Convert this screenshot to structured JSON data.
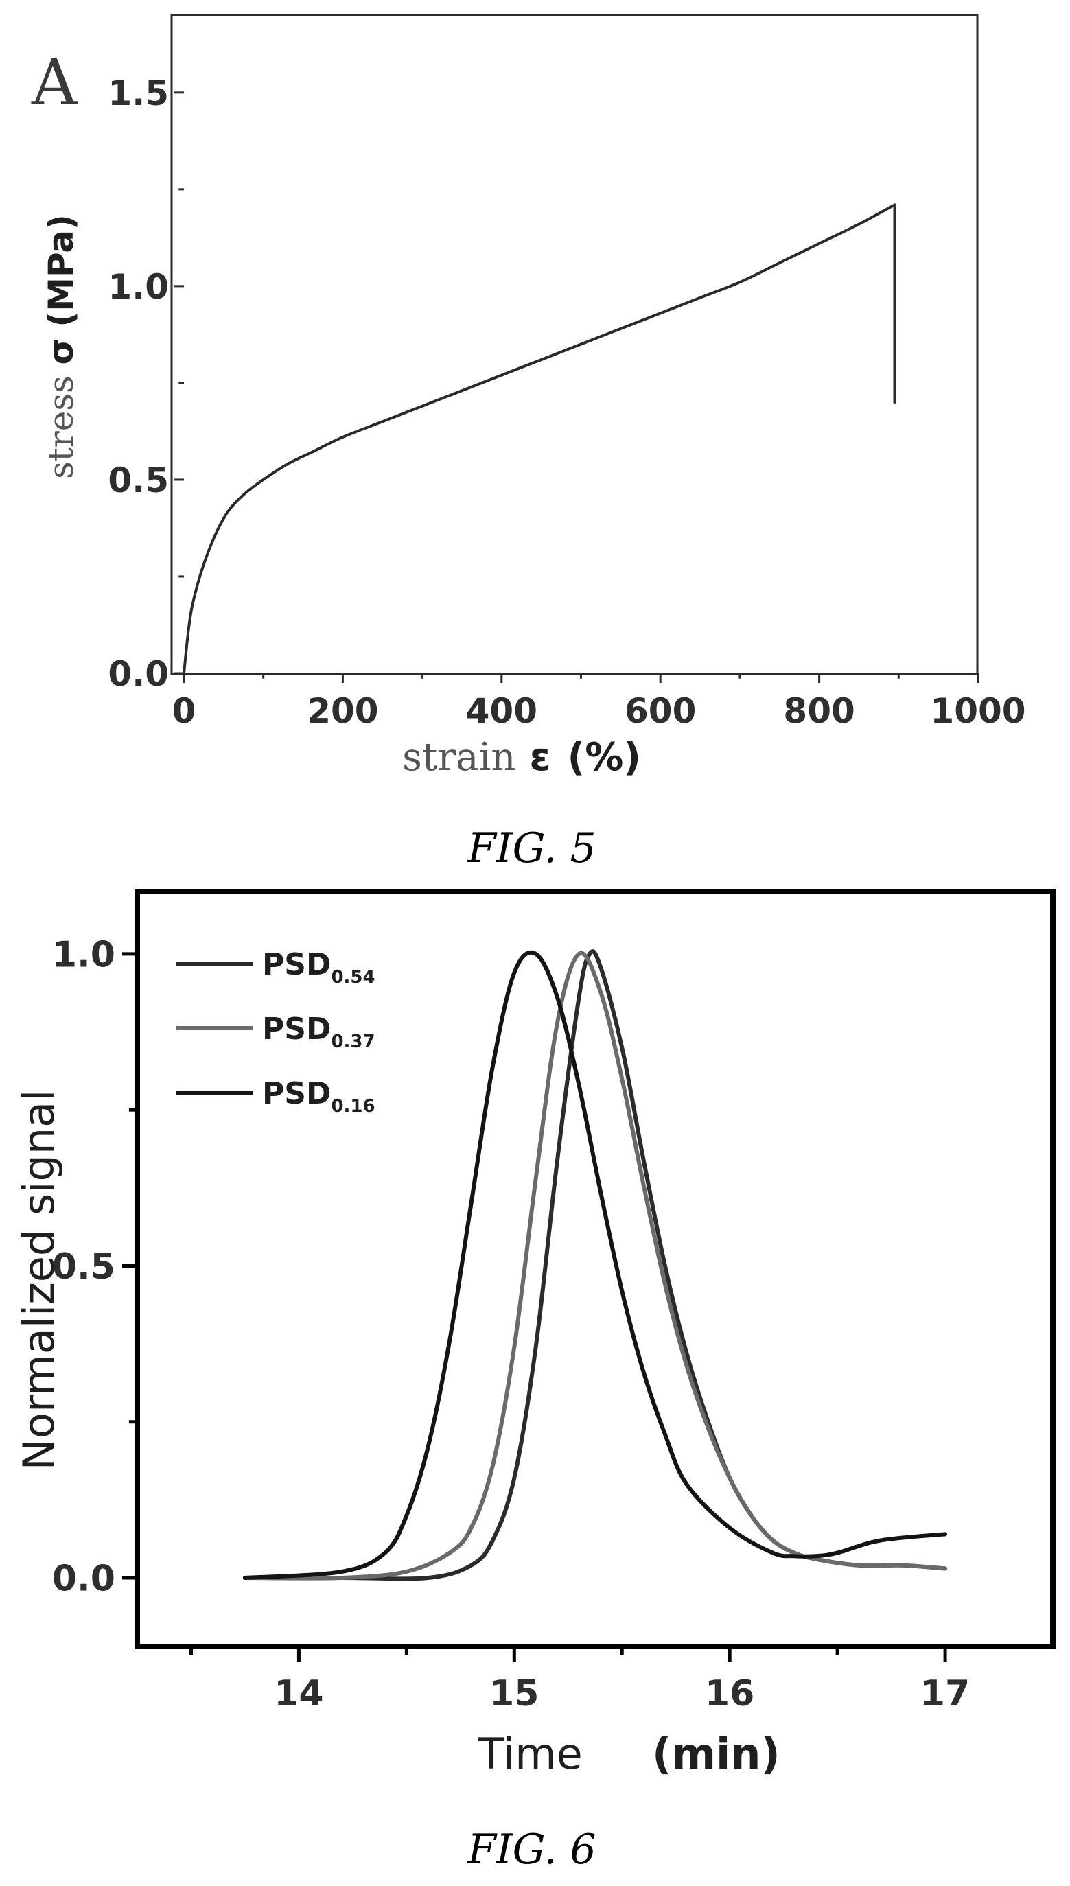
{
  "chart_data": [
    {
      "type": "line",
      "panel_label": "A",
      "ylabel": {
        "word": "stress",
        "symbol": "σ",
        "unit": "(MPa)"
      },
      "xlabel": {
        "word": "strain",
        "symbol": "ε",
        "unit": "(%)"
      },
      "xlim": [
        0,
        1000
      ],
      "ylim": [
        0,
        1.7
      ],
      "xticks": [
        0,
        200,
        400,
        600,
        800,
        1000
      ],
      "xtick_labels": [
        "0",
        "200",
        "400",
        "600",
        "800",
        "1000"
      ],
      "yticks": [
        0,
        0.5,
        1.0,
        1.5
      ],
      "ytick_labels": [
        "0.0",
        "0.5",
        "1.0",
        "1.5"
      ],
      "grid": false,
      "series": [
        {
          "color": "#2a2a2a",
          "x": [
            0,
            5,
            10,
            20,
            30,
            40,
            50,
            60,
            80,
            100,
            130,
            160,
            200,
            250,
            300,
            350,
            400,
            450,
            500,
            550,
            600,
            650,
            700,
            750,
            800,
            850,
            895,
            895
          ],
          "y": [
            0.0,
            0.1,
            0.17,
            0.25,
            0.31,
            0.36,
            0.4,
            0.43,
            0.47,
            0.5,
            0.54,
            0.57,
            0.61,
            0.65,
            0.69,
            0.73,
            0.77,
            0.81,
            0.85,
            0.89,
            0.93,
            0.97,
            1.01,
            1.06,
            1.11,
            1.16,
            1.21,
            0.7
          ]
        }
      ]
    },
    {
      "type": "line",
      "xlabel": {
        "word": "Time",
        "unit": "(min)"
      },
      "ylabel": "Normalized signal",
      "xlim": [
        13.25,
        17.5
      ],
      "ylim": [
        -0.11,
        1.1
      ],
      "xticks": [
        14,
        15,
        16,
        17
      ],
      "xtick_labels": [
        "14",
        "15",
        "16",
        "17"
      ],
      "yticks": [
        0.0,
        0.5,
        1.0
      ],
      "ytick_labels": [
        "0.0",
        "0.5",
        "1.0"
      ],
      "grid": false,
      "legend_position": "top-left",
      "series": [
        {
          "name_main": "PSD",
          "name_sub": "0.54",
          "color": "#2b2b2b",
          "x": [
            13.75,
            14.2,
            14.6,
            14.8,
            14.9,
            15.0,
            15.1,
            15.2,
            15.3,
            15.35,
            15.4,
            15.5,
            15.6,
            15.7,
            15.8,
            15.9,
            16.0,
            16.1,
            16.2,
            16.3,
            16.4,
            16.6,
            16.8,
            17.0
          ],
          "y": [
            0.0,
            0.0,
            0.0,
            0.02,
            0.06,
            0.16,
            0.37,
            0.67,
            0.93,
            1.0,
            0.98,
            0.85,
            0.67,
            0.5,
            0.36,
            0.25,
            0.16,
            0.1,
            0.06,
            0.04,
            0.03,
            0.02,
            0.02,
            0.015
          ]
        },
        {
          "name_main": "PSD",
          "name_sub": "0.37",
          "color": "#6a6a6a",
          "x": [
            13.75,
            14.2,
            14.5,
            14.7,
            14.8,
            14.9,
            15.0,
            15.1,
            15.2,
            15.3,
            15.4,
            15.5,
            15.6,
            15.7,
            15.8,
            15.9,
            16.0,
            16.1,
            16.2,
            16.3,
            16.4,
            16.6,
            16.8,
            17.0
          ],
          "y": [
            0.0,
            0.0,
            0.01,
            0.04,
            0.08,
            0.18,
            0.37,
            0.64,
            0.89,
            1.0,
            0.94,
            0.8,
            0.63,
            0.47,
            0.34,
            0.24,
            0.16,
            0.1,
            0.06,
            0.04,
            0.03,
            0.02,
            0.02,
            0.015
          ]
        },
        {
          "name_main": "PSD",
          "name_sub": "0.16",
          "color": "#141414",
          "x": [
            13.75,
            14.2,
            14.4,
            14.5,
            14.6,
            14.7,
            14.8,
            14.9,
            15.0,
            15.1,
            15.2,
            15.3,
            15.4,
            15.5,
            15.6,
            15.7,
            15.8,
            16.0,
            16.2,
            16.3,
            16.4,
            16.5,
            16.7,
            17.0
          ],
          "y": [
            0.0,
            0.01,
            0.04,
            0.1,
            0.21,
            0.38,
            0.6,
            0.82,
            0.97,
            1.0,
            0.93,
            0.79,
            0.62,
            0.46,
            0.33,
            0.23,
            0.15,
            0.08,
            0.04,
            0.035,
            0.035,
            0.04,
            0.06,
            0.07
          ]
        }
      ]
    }
  ],
  "captions": {
    "fig5": "FIG. 5",
    "fig6": "FIG. 6"
  }
}
